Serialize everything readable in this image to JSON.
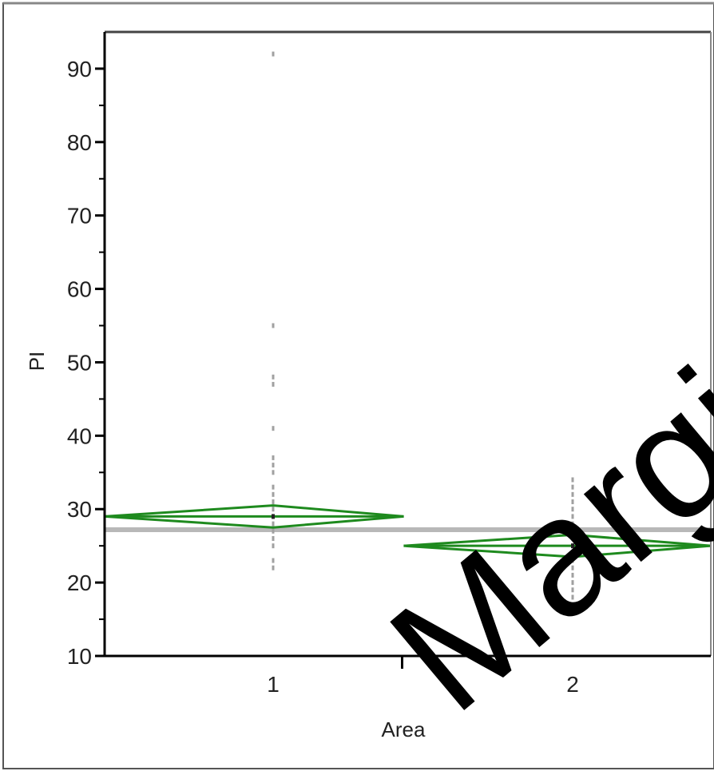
{
  "chart_data": {
    "type": "scatter",
    "subtype": "means-diamonds",
    "xlabel": "Area",
    "ylabel": "PI",
    "categories": [
      "1",
      "2"
    ],
    "ylim": [
      10,
      95
    ],
    "yticks": [
      10,
      20,
      30,
      40,
      50,
      60,
      70,
      80,
      90
    ],
    "grand_mean": 27.2,
    "groups": [
      {
        "category": "1",
        "mean": 29,
        "ci_low": 27.5,
        "ci_high": 30.5,
        "points": [
          22,
          23,
          25,
          26,
          27,
          28,
          29,
          30,
          31,
          32,
          33,
          35,
          36,
          37,
          41,
          47,
          48,
          55,
          92
        ]
      },
      {
        "category": "2",
        "mean": 25,
        "ci_low": 23.5,
        "ci_high": 26.5,
        "points": [
          16,
          17,
          18,
          19,
          20,
          21,
          22,
          23,
          24,
          25,
          26,
          27,
          28,
          29,
          30,
          31,
          32,
          33,
          34
        ]
      }
    ],
    "colors": {
      "diamond": "#1e8a1e",
      "grand_mean_line": "#b8b8b8",
      "points": "#a0a0a0",
      "axis": "#000000"
    },
    "grid": false,
    "legend": "none"
  },
  "watermark": {
    "text": "Margi"
  }
}
